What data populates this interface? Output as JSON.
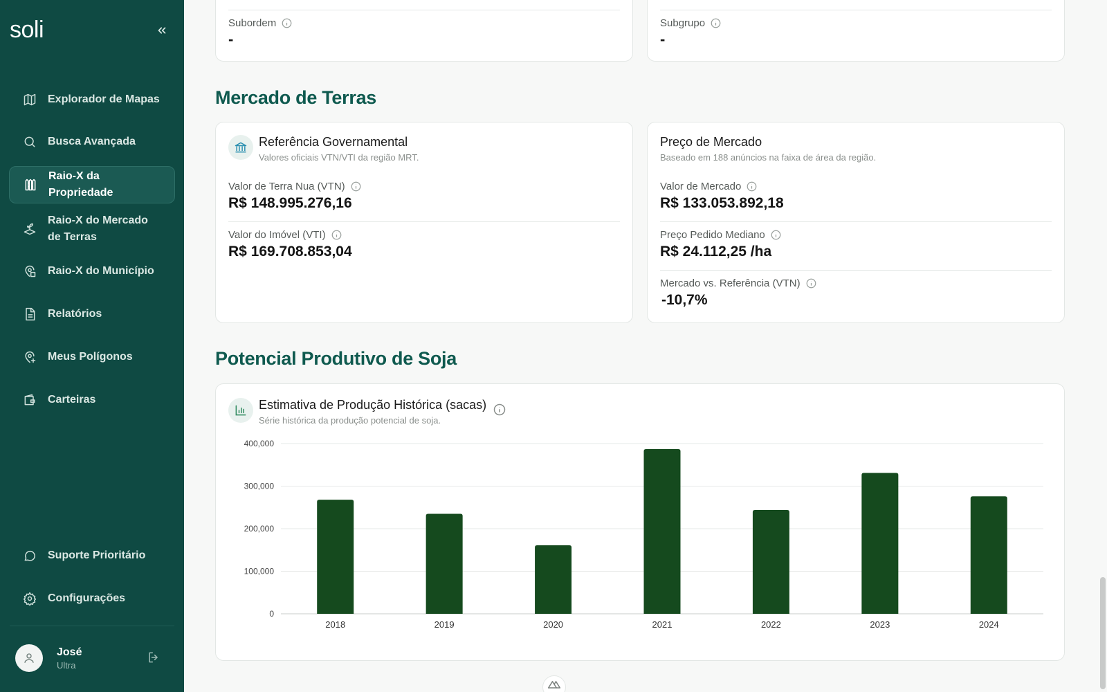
{
  "sidebar": {
    "brand": "soli",
    "collapse_icon": "chevrons-left-icon",
    "items": [
      {
        "label": "Explorador de Mapas",
        "icon": "map-icon"
      },
      {
        "label": "Busca Avançada",
        "icon": "search-icon"
      },
      {
        "label": "Raio-X da Propriedade",
        "icon": "fence-icon",
        "active": true
      },
      {
        "label": "Raio-X do Mercado de Terras",
        "icon": "sprout-icon"
      },
      {
        "label": "Raio-X do Município",
        "icon": "map-pin-building-icon"
      },
      {
        "label": "Relatórios",
        "icon": "file-text-icon"
      },
      {
        "label": "Meus Polígonos",
        "icon": "map-pin-plus-icon"
      },
      {
        "label": "Carteiras",
        "icon": "wallet-icon"
      }
    ],
    "bottom_items": [
      {
        "label": "Suporte Prioritário",
        "icon": "message-circle-icon"
      },
      {
        "label": "Configurações",
        "icon": "gear-icon"
      }
    ],
    "user": {
      "name": "José",
      "plan": "Ultra"
    }
  },
  "top_cards": {
    "left": {
      "label": "Subordem",
      "value": "-"
    },
    "right": {
      "label": "Subgrupo",
      "value": "-"
    }
  },
  "land_market": {
    "title": "Mercado de Terras",
    "government": {
      "title": "Referência Governamental",
      "subtitle": "Valores oficiais VTN/VTI da região MRT.",
      "vtn_label": "Valor de Terra Nua (VTN)",
      "vtn_value": "R$ 148.995.276,16",
      "vti_label": "Valor do Imóvel (VTI)",
      "vti_value": "R$ 169.708.853,04"
    },
    "market": {
      "title": "Preço de Mercado",
      "subtitle": "Baseado em 188 anúncios na faixa de área da região.",
      "market_label": "Valor de Mercado",
      "market_value": "R$ 133.053.892,18",
      "median_label": "Preço Pedido Mediano",
      "median_value": "R$ 24.112,25 /ha",
      "vs_label": "Mercado vs. Referência (VTN)",
      "vs_value": "-10,7%"
    }
  },
  "soy": {
    "title": "Potencial Produtivo de Soja",
    "card_title": "Estimativa de Produção Histórica (sacas)",
    "card_subtitle": "Série histórica da produção potencial de soja."
  },
  "colors": {
    "sidebar": "#0f4a43",
    "accent": "#0f5a4f",
    "bar": "#154a1e"
  },
  "chart_data": {
    "type": "bar",
    "categories": [
      "2018",
      "2019",
      "2020",
      "2021",
      "2022",
      "2023",
      "2024"
    ],
    "values": [
      268000,
      235000,
      161000,
      387000,
      244000,
      331000,
      276000
    ],
    "ylim": [
      0,
      400000
    ],
    "yticks": [
      "0",
      "100,000",
      "200,000",
      "300,000",
      "400,000"
    ],
    "grid": true,
    "title": "Estimativa de Produção Histórica (sacas)",
    "xlabel": "",
    "ylabel": ""
  }
}
